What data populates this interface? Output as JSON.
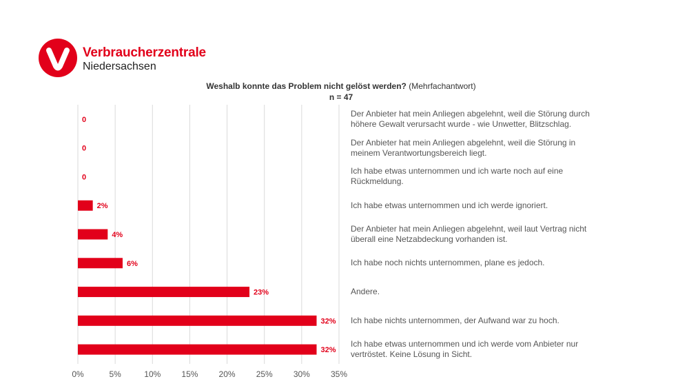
{
  "logo": {
    "name_line1": "Verbraucherzentrale",
    "name_line2": "Niedersachsen",
    "icon": "v-check-mark-icon",
    "brand_color": "#e2001a"
  },
  "chart_data": {
    "type": "bar",
    "orientation": "horizontal",
    "title": "Weshalb konnte das Problem nicht gelöst werden?",
    "title_suffix": "(Mehrfachantwort)",
    "subtitle": "n = 47",
    "xlim": [
      0,
      35
    ],
    "ticks": [
      "0%",
      "5%",
      "10%",
      "15%",
      "20%",
      "25%",
      "30%",
      "35%"
    ],
    "grid": true,
    "bar_color": "#e2001a",
    "label_color": "#e2001a",
    "categories": [
      "Der Anbieter hat mein Anliegen abgelehnt, weil die Störung durch höhere Gewalt verursacht wurde - wie Unwetter, Blitzschlag.",
      "Der Anbieter hat mein Anliegen abgelehnt, weil die Störung in meinem Verantwortungsbereich liegt.",
      "Ich habe etwas unternommen und ich warte noch auf eine Rückmeldung.",
      "Ich habe etwas unternommen und ich werde ignoriert.",
      "Der Anbieter hat mein Anliegen abgelehnt, weil laut Vertrag nicht überall eine Netzabdeckung vorhanden ist.",
      "Ich habe noch nichts unternommen, plane es jedoch.",
      "Andere.",
      "Ich habe nichts unternommen, der Aufwand war zu hoch.",
      "Ich habe etwas unternommen und ich werde vom Anbieter nur vertröstet. Keine Lösung in Sicht."
    ],
    "values": [
      0,
      0,
      0,
      2,
      4,
      6,
      23,
      32,
      32
    ],
    "value_labels": [
      "0",
      "0",
      "0",
      "2%",
      "4%",
      "6%",
      "23%",
      "32%",
      "32%"
    ]
  }
}
